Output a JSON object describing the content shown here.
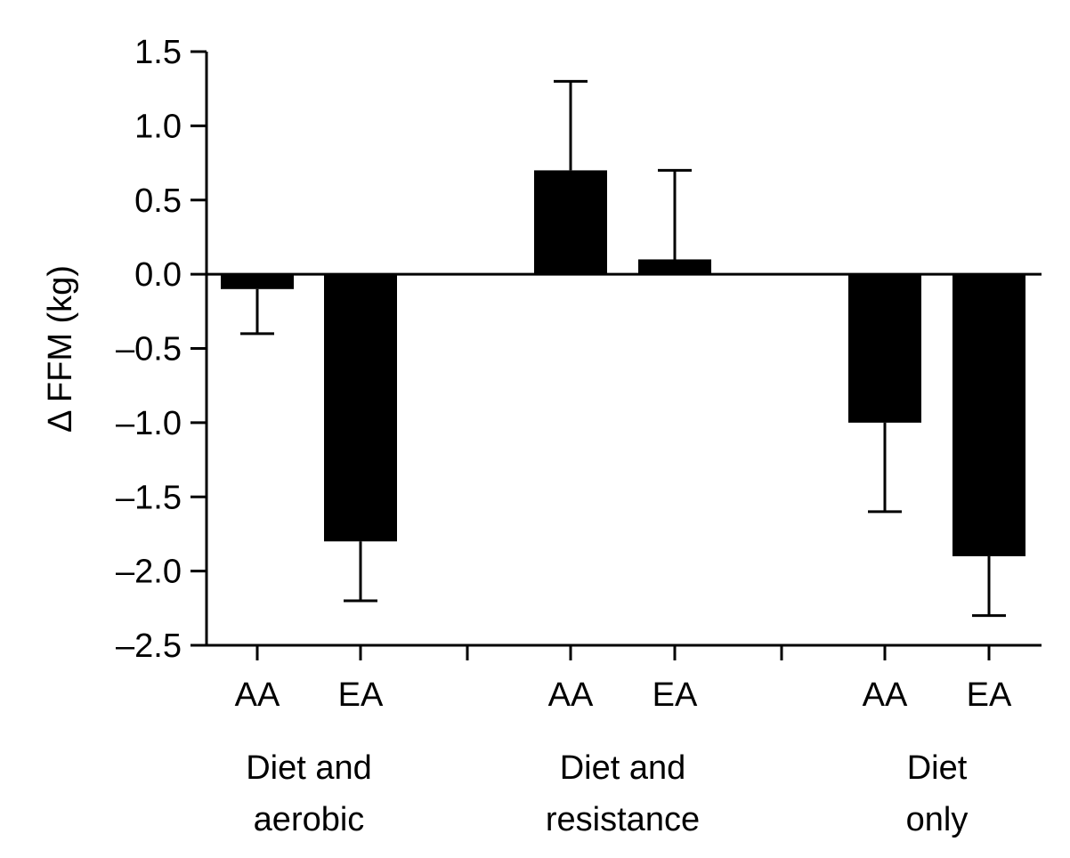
{
  "chart_data": {
    "type": "bar",
    "ylabel": "Δ FFM (kg)",
    "ylim": [
      -2.5,
      1.5
    ],
    "yticks": [
      "1.5",
      "1.0",
      "0.5",
      "0.0",
      "–0.5",
      "–1.0",
      "–1.5",
      "–2.0",
      "–2.5"
    ],
    "ytick_values": [
      1.5,
      1.0,
      0.5,
      0.0,
      -0.5,
      -1.0,
      -1.5,
      -2.0,
      -2.5
    ],
    "grid": false,
    "bar_color": "#000000",
    "groups": [
      {
        "label_line1": "Diet and",
        "label_line2": "aerobic",
        "bars": [
          {
            "category": "AA",
            "value": -0.1,
            "error": 0.3
          },
          {
            "category": "EA",
            "value": -1.8,
            "error": 0.4
          }
        ]
      },
      {
        "label_line1": "Diet and",
        "label_line2": "resistance",
        "bars": [
          {
            "category": "AA",
            "value": 0.7,
            "error": 0.6
          },
          {
            "category": "EA",
            "value": 0.1,
            "error": 0.6
          }
        ]
      },
      {
        "label_line1": "Diet",
        "label_line2": "only",
        "bars": [
          {
            "category": "AA",
            "value": -1.0,
            "error": 0.6
          },
          {
            "category": "EA",
            "value": -1.9,
            "error": 0.4
          }
        ]
      }
    ]
  }
}
